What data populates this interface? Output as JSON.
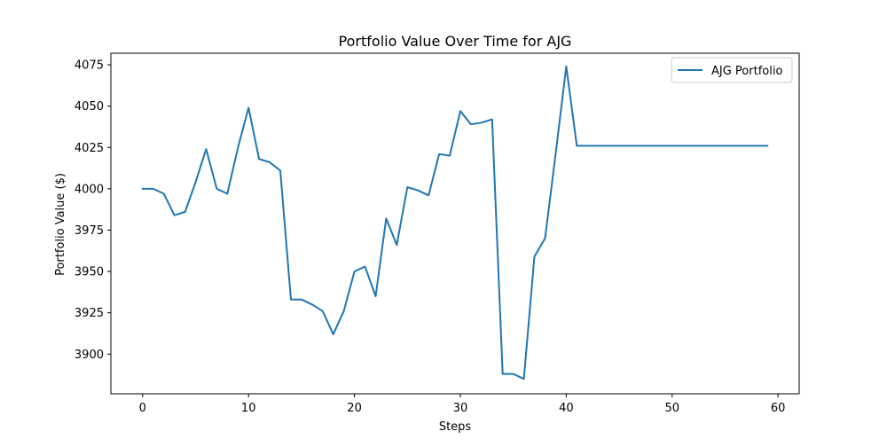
{
  "chart_data": {
    "type": "line",
    "title": "Portfolio Value Over Time for AJG",
    "xlabel": "Steps",
    "ylabel": "Portfolio Value ($)",
    "xlim": [
      -3,
      62
    ],
    "ylim": [
      3876,
      4082
    ],
    "xticks": [
      0,
      10,
      20,
      30,
      40,
      50,
      60
    ],
    "yticks": [
      3900,
      3925,
      3950,
      3975,
      4000,
      4025,
      4050,
      4075
    ],
    "grid": false,
    "legend_position": "top-right",
    "series": [
      {
        "name": "AJG Portfolio",
        "color": "#1f77b4",
        "x": [
          0,
          1,
          2,
          3,
          4,
          5,
          6,
          7,
          8,
          9,
          10,
          11,
          12,
          13,
          14,
          15,
          16,
          17,
          18,
          19,
          20,
          21,
          22,
          23,
          24,
          25,
          26,
          27,
          28,
          29,
          30,
          31,
          32,
          33,
          34,
          35,
          36,
          37,
          38,
          39,
          40,
          41,
          42,
          43,
          44,
          45,
          46,
          47,
          48,
          49,
          50,
          51,
          52,
          53,
          54,
          55,
          56,
          57,
          58,
          59
        ],
        "y": [
          4000,
          4000,
          3997,
          3984,
          3986,
          4004,
          4024,
          4000,
          3997,
          4025,
          4049,
          4018,
          4016,
          4011,
          3933,
          3933,
          3930,
          3926,
          3912,
          3926,
          3950,
          3953,
          3935,
          3982,
          3966,
          4001,
          3999,
          3996,
          4021,
          4020,
          4047,
          4039,
          4040,
          4042,
          3888,
          3888,
          3885,
          3959,
          3970,
          4021,
          4074,
          4026,
          4026,
          4026,
          4026,
          4026,
          4026,
          4026,
          4026,
          4026,
          4026,
          4026,
          4026,
          4026,
          4026,
          4026,
          4026,
          4026,
          4026,
          4026
        ]
      }
    ]
  }
}
